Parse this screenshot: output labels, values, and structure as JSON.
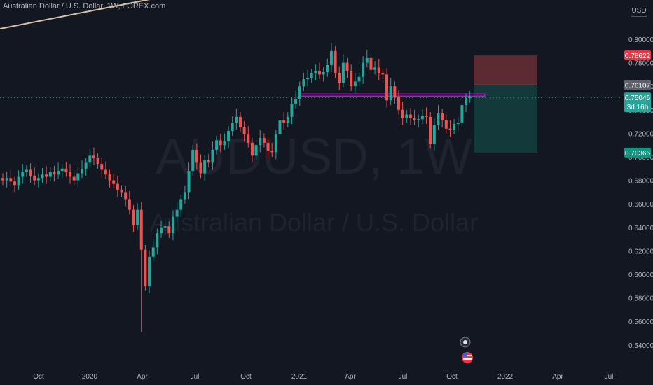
{
  "header": {
    "title": "Australian Dollar / U.S. Dollar, 1W, FOREX.com",
    "currency": "USD"
  },
  "watermark": {
    "symbol": "AUDUSD, 1W",
    "name": "Australian Dollar / U.S. Dollar"
  },
  "colors": {
    "background": "#131722",
    "up": "#26a69a",
    "down": "#ef5350",
    "axis_text": "#b2b5be",
    "resistance": "#9c27b0",
    "stop_zone": "#5b2a33",
    "target_zone": "#13393a",
    "current_line": "#26a69a"
  },
  "price_labels": {
    "stop": "0.78622",
    "entry": "0.76107",
    "current": "0.75046",
    "countdown": "3d 16h",
    "target": "0.70366"
  },
  "chart_data": {
    "type": "candlestick",
    "title": "Australian Dollar / U.S. Dollar, 1W, FOREX.com",
    "y_ticks": [
      "0.80000",
      "0.78000",
      "0.76000",
      "0.74000",
      "0.72000",
      "0.70000",
      "0.68000",
      "0.66000",
      "0.64000",
      "0.62000",
      "0.60000",
      "0.58000",
      "0.56000",
      "0.54000"
    ],
    "x_ticks": [
      "Oct",
      "2020",
      "Apr",
      "Jul",
      "Oct",
      "2021",
      "Apr",
      "Jul",
      "Oct",
      "2022",
      "Apr",
      "Jul"
    ],
    "ylim": [
      0.532,
      0.812
    ],
    "resistance_level": 0.7525,
    "position": {
      "stop": 0.78622,
      "entry": 0.76107,
      "target": 0.70366
    },
    "current_price": 0.75046,
    "closes": [
      0.68,
      0.682,
      0.679,
      0.676,
      0.683,
      0.687,
      0.689,
      0.684,
      0.68,
      0.682,
      0.685,
      0.683,
      0.687,
      0.685,
      0.688,
      0.69,
      0.687,
      0.683,
      0.68,
      0.686,
      0.69,
      0.695,
      0.701,
      0.699,
      0.694,
      0.689,
      0.685,
      0.68,
      0.677,
      0.672,
      0.67,
      0.664,
      0.655,
      0.642,
      0.655,
      0.621,
      0.59,
      0.615,
      0.623,
      0.635,
      0.64,
      0.641,
      0.635,
      0.649,
      0.655,
      0.664,
      0.67,
      0.688,
      0.706,
      0.695,
      0.686,
      0.697,
      0.695,
      0.706,
      0.714,
      0.71,
      0.713,
      0.722,
      0.729,
      0.734,
      0.725,
      0.719,
      0.712,
      0.701,
      0.71,
      0.716,
      0.712,
      0.705,
      0.704,
      0.719,
      0.731,
      0.729,
      0.734,
      0.745,
      0.749,
      0.76,
      0.766,
      0.767,
      0.771,
      0.773,
      0.77,
      0.772,
      0.778,
      0.79,
      0.771,
      0.763,
      0.78,
      0.773,
      0.76,
      0.764,
      0.768,
      0.78,
      0.784,
      0.774,
      0.776,
      0.771,
      0.77,
      0.748,
      0.76,
      0.751,
      0.74,
      0.733,
      0.736,
      0.733,
      0.731,
      0.732,
      0.735,
      0.734,
      0.711,
      0.727,
      0.737,
      0.731,
      0.724,
      0.723,
      0.728,
      0.729,
      0.744,
      0.75,
      0.7505
    ]
  }
}
